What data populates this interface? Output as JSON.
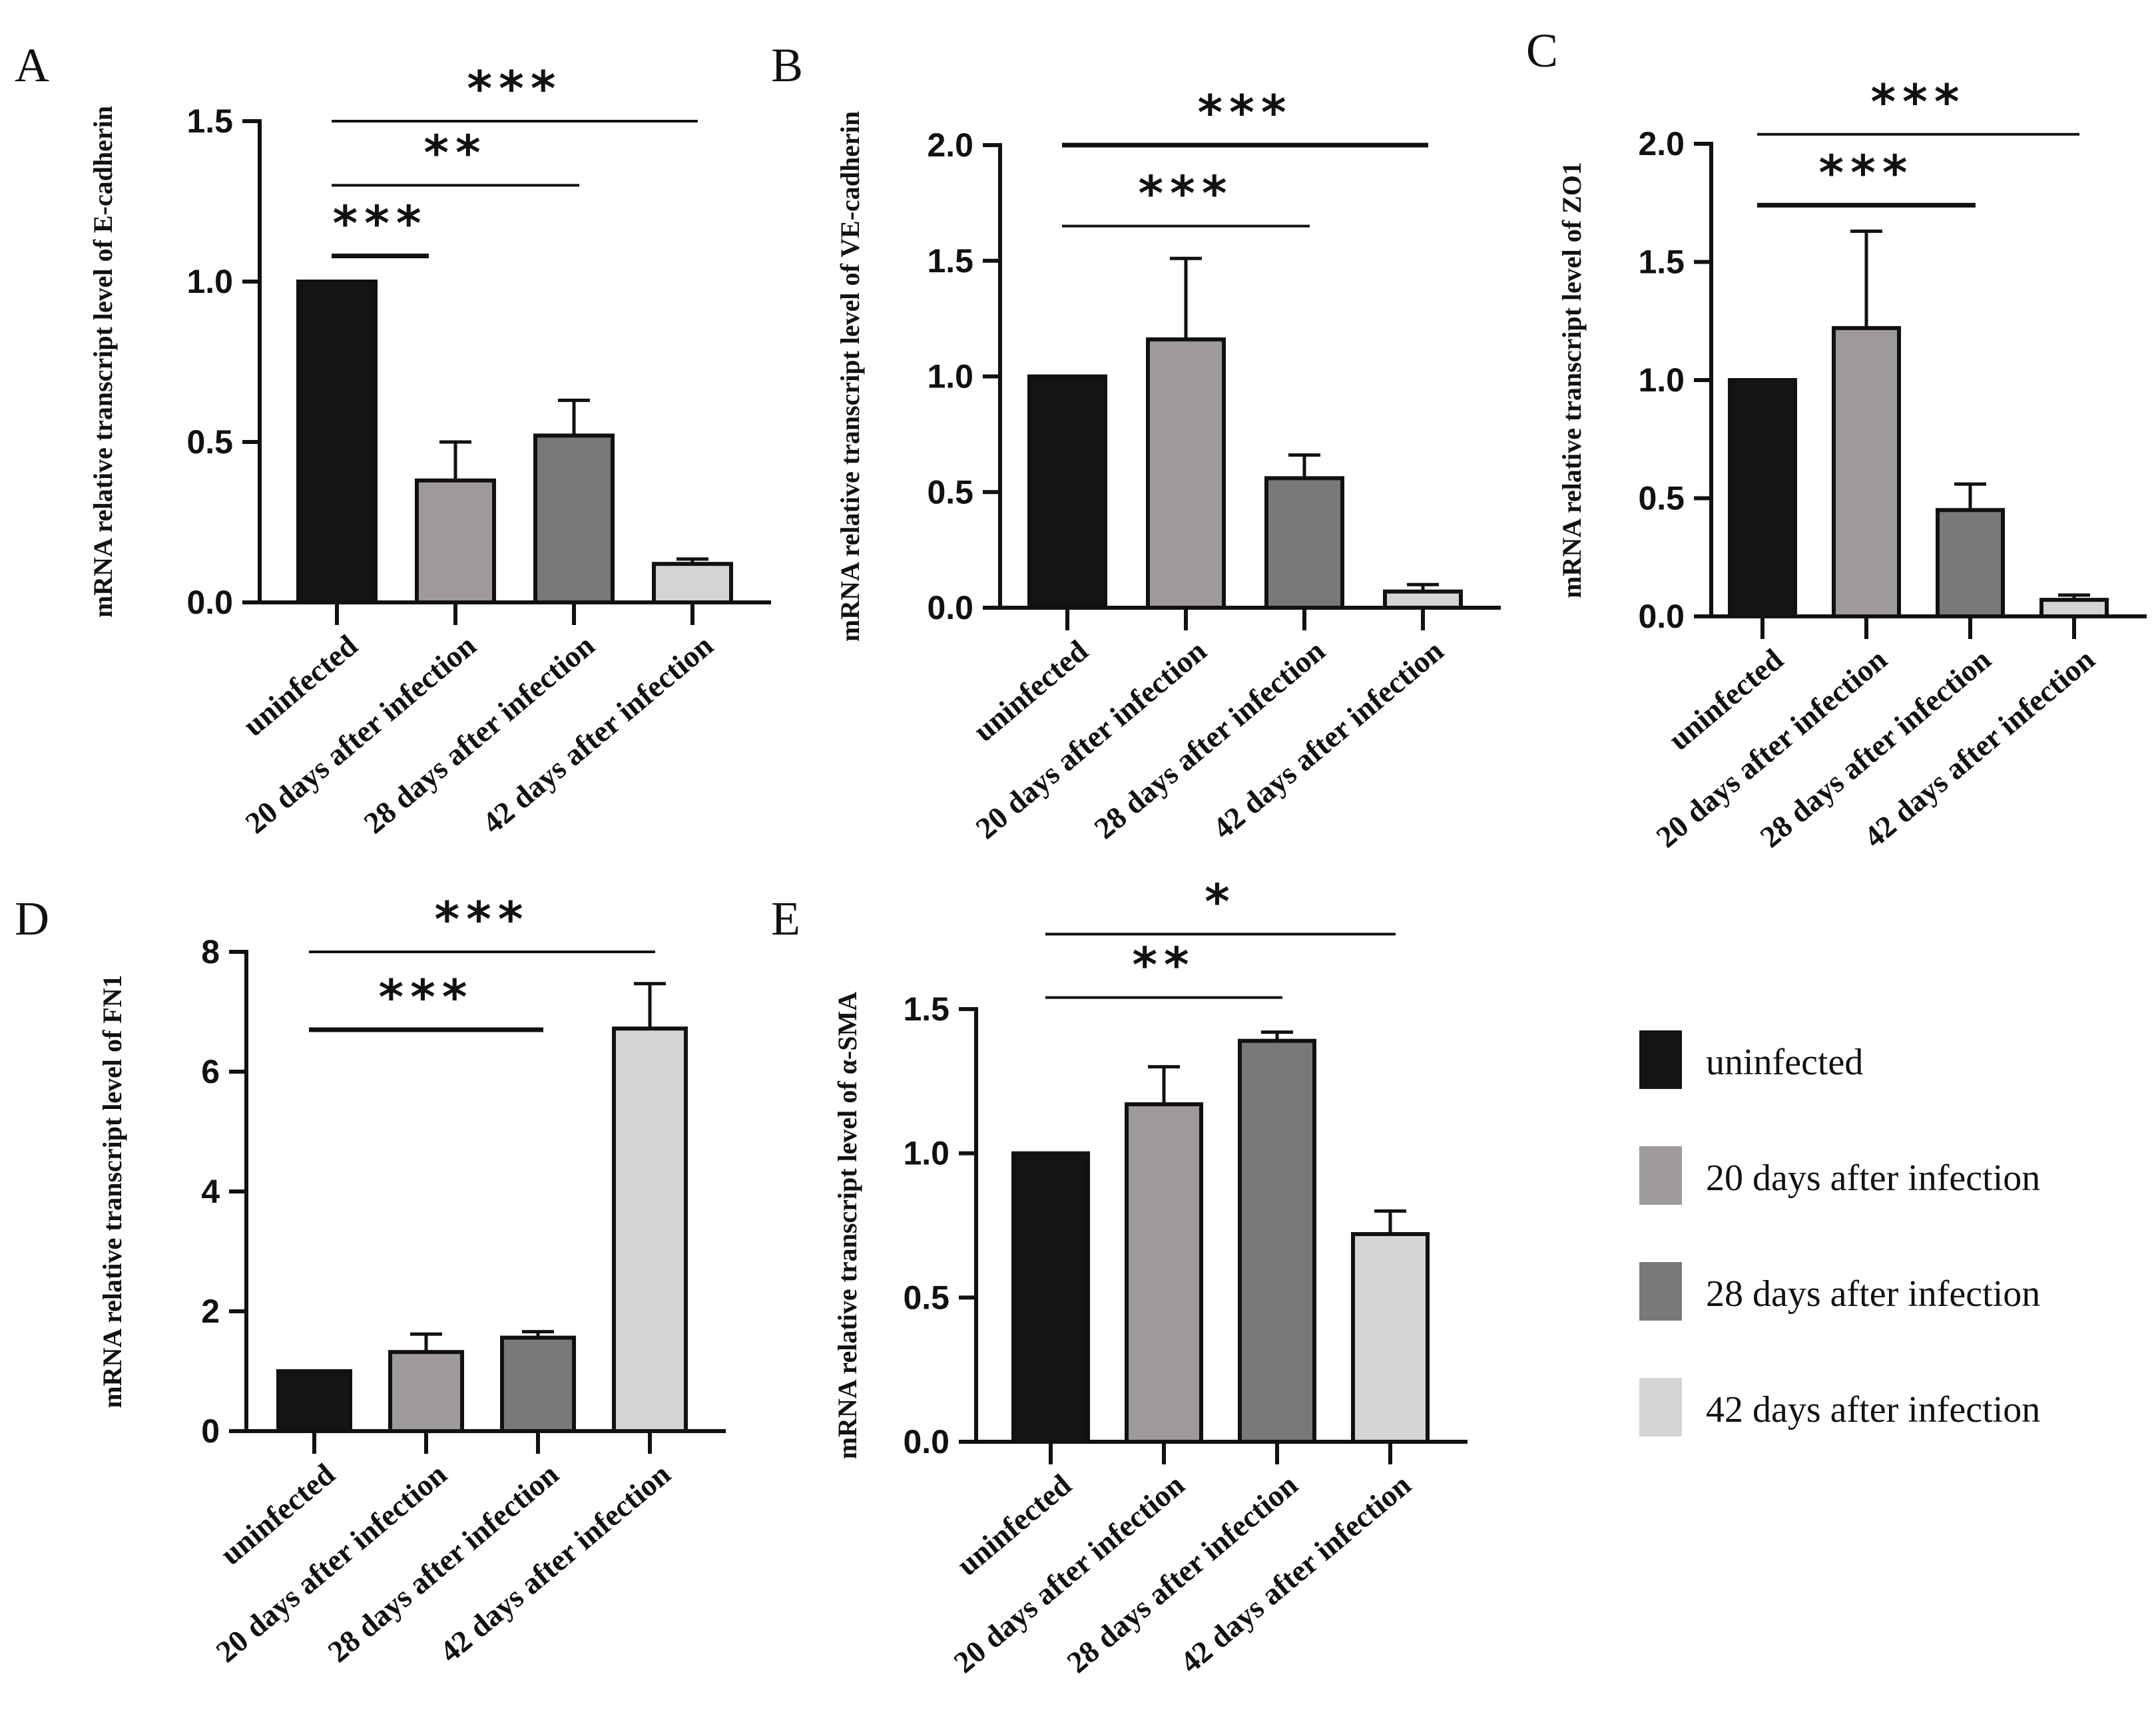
{
  "colors": {
    "uninfected": "#141414",
    "day20": "#9e9a9c",
    "day28": "#7b787a",
    "day42": "#d4d4d4",
    "axis": "#111111"
  },
  "legend": {
    "items": [
      {
        "label": "uninfected",
        "color_key": "uninfected"
      },
      {
        "label": "20 days after infection",
        "color_key": "day20"
      },
      {
        "label": "28 days after infection",
        "color_key": "day28"
      },
      {
        "label": "42 days after infection",
        "color_key": "day42"
      }
    ]
  },
  "chart_data": [
    {
      "type": "bar",
      "panel": "A",
      "title": "",
      "ylabel": "mRNA relative transcript level of E-cadherin",
      "xlabel": "",
      "categories": [
        "uninfected",
        "20 days after infection",
        "28 days after infection",
        "42 days after infection"
      ],
      "values": [
        1.0,
        0.38,
        0.52,
        0.12
      ],
      "errors": [
        0,
        0.12,
        0.11,
        0.015
      ],
      "ylim": [
        0,
        1.5
      ],
      "yticks": [
        0.0,
        0.5,
        1.0,
        1.5
      ],
      "ytick_labels": [
        "0.0",
        "0.5",
        "1.0",
        "1.5"
      ],
      "significance": [
        {
          "from": 0,
          "to": 3,
          "level": 1.5,
          "stars": "***",
          "weight": "thin"
        },
        {
          "from": 0,
          "to": 2,
          "level": 1.3,
          "stars": "**",
          "weight": "thin"
        },
        {
          "from": 0,
          "to": 1,
          "level": 1.08,
          "stars": "***",
          "weight": "thick"
        }
      ]
    },
    {
      "type": "bar",
      "panel": "B",
      "title": "",
      "ylabel": "mRNA relative transcript level of VE-cadherin",
      "xlabel": "",
      "categories": [
        "uninfected",
        "20 days after infection",
        "28 days after infection",
        "42 days after infection"
      ],
      "values": [
        1.0,
        1.16,
        0.56,
        0.07
      ],
      "errors": [
        0,
        0.35,
        0.1,
        0.03
      ],
      "ylim": [
        0,
        2.0
      ],
      "yticks": [
        0.0,
        0.5,
        1.0,
        1.5,
        2.0
      ],
      "ytick_labels": [
        "0.0",
        "0.5",
        "1.0",
        "1.5",
        "2.0"
      ],
      "significance": [
        {
          "from": 0,
          "to": 3,
          "level": 2.0,
          "stars": "***",
          "weight": "thick"
        },
        {
          "from": 0,
          "to": 2,
          "level": 1.65,
          "stars": "***",
          "weight": "thin"
        }
      ]
    },
    {
      "type": "bar",
      "panel": "C",
      "title": "",
      "ylabel": "mRNA relative transcript level of ZO1",
      "xlabel": "",
      "categories": [
        "uninfected",
        "20 days after infection",
        "28 days after infection",
        "42 days after infection"
      ],
      "values": [
        1.0,
        1.22,
        0.45,
        0.07
      ],
      "errors": [
        0,
        0.41,
        0.11,
        0.02
      ],
      "ylim": [
        0,
        2.0
      ],
      "yticks": [
        0.0,
        0.5,
        1.0,
        1.5,
        2.0
      ],
      "ytick_labels": [
        "0.0",
        "0.5",
        "1.0",
        "1.5",
        "2.0"
      ],
      "significance": [
        {
          "from": 0,
          "to": 3,
          "level": 2.04,
          "stars": "***",
          "weight": "thin"
        },
        {
          "from": 0,
          "to": 2,
          "level": 1.74,
          "stars": "***",
          "weight": "thick"
        }
      ]
    },
    {
      "type": "bar",
      "panel": "D",
      "title": "",
      "ylabel": "mRNA relative transcript level of FN1",
      "xlabel": "",
      "categories": [
        "uninfected",
        "20 days after infection",
        "28 days after infection",
        "42 days after infection"
      ],
      "values": [
        1.0,
        1.32,
        1.56,
        6.72
      ],
      "errors": [
        0,
        0.3,
        0.1,
        0.75
      ],
      "ylim": [
        0,
        8
      ],
      "yticks": [
        0,
        2,
        4,
        6,
        8
      ],
      "ytick_labels": [
        "0",
        "2",
        "4",
        "6",
        "8"
      ],
      "significance": [
        {
          "from": 0,
          "to": 3,
          "level": 8.0,
          "stars": "***",
          "weight": "thin"
        },
        {
          "from": 0,
          "to": 2,
          "level": 6.7,
          "stars": "***",
          "weight": "thick"
        }
      ]
    },
    {
      "type": "bar",
      "panel": "E",
      "title": "",
      "ylabel": "mRNA relative transcript level of α-SMA",
      "xlabel": "",
      "categories": [
        "uninfected",
        "20 days after infection",
        "28 days after infection",
        "42 days after infection"
      ],
      "values": [
        1.0,
        1.17,
        1.39,
        0.72
      ],
      "errors": [
        0,
        0.13,
        0.03,
        0.08
      ],
      "ylim": [
        0,
        1.5
      ],
      "yticks": [
        0.0,
        0.5,
        1.0,
        1.5
      ],
      "ytick_labels": [
        "0.0",
        "0.5",
        "1.0",
        "1.5"
      ],
      "significance": [
        {
          "from": 0,
          "to": 3,
          "level": 1.76,
          "stars": "*",
          "weight": "thin"
        },
        {
          "from": 0,
          "to": 2,
          "level": 1.54,
          "stars": "**",
          "weight": "thin"
        }
      ]
    }
  ]
}
